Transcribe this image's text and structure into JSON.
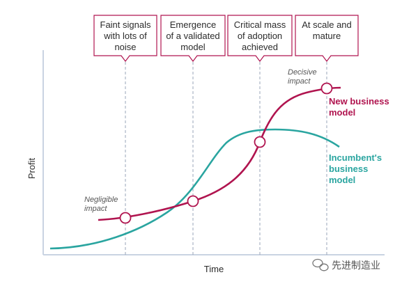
{
  "stages": [
    {
      "lines": [
        "Faint signals",
        "with lots of",
        "noise"
      ]
    },
    {
      "lines": [
        "Emergence",
        "of a validated",
        "model"
      ]
    },
    {
      "lines": [
        "Critical mass",
        "of adoption",
        "achieved"
      ]
    },
    {
      "lines": [
        "At scale and",
        "mature"
      ]
    }
  ],
  "axes": {
    "y_label": "Profit",
    "x_label": "Time"
  },
  "annotations": {
    "negligible": [
      "Negligible",
      "impact"
    ],
    "decisive": [
      "Decisive",
      "impact"
    ]
  },
  "curves": {
    "new_model": {
      "label_lines": [
        "New business",
        "model"
      ],
      "color": "#b0144f"
    },
    "incumbent": {
      "label_lines": [
        "Incumbent's",
        "business",
        "model"
      ],
      "color": "#2aa5a0"
    }
  },
  "colors": {
    "box_border": "#b0144f",
    "dashed": "#9aa6b8",
    "axis": "#c9d3e2"
  },
  "watermark": {
    "text": "先进制造业",
    "icon": "wechat-icon"
  }
}
